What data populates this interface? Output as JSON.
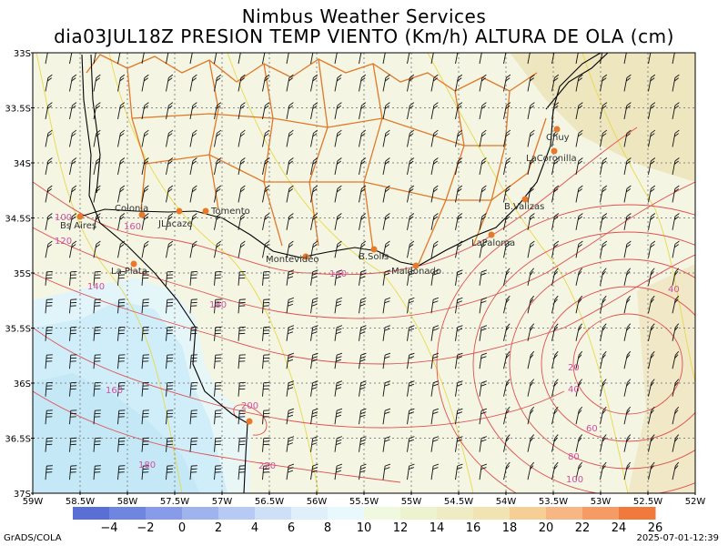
{
  "header": {
    "title": "Nimbus Weather Services",
    "subtitle": "dia03JUL18Z PRESION TEMP VIENTO (Km/h) ALTURA DE OLA (cm)"
  },
  "axes": {
    "lat_labels": [
      "33S",
      "33.5S",
      "34S",
      "34.5S",
      "35S",
      "35.5S",
      "36S",
      "36.5S",
      "37S"
    ],
    "lon_labels": [
      "59W",
      "58.5W",
      "58W",
      "57.5W",
      "57W",
      "56.5W",
      "56W",
      "55.5W",
      "55W",
      "54.5W",
      "54W",
      "53.5W",
      "53W",
      "52.5W",
      "52W"
    ]
  },
  "cities": [
    {
      "name": "Chuy"
    },
    {
      "name": "LaCoronilla"
    },
    {
      "name": "B.Valizas"
    },
    {
      "name": "LaPaloma"
    },
    {
      "name": "B.Solis"
    },
    {
      "name": "Maldonado"
    },
    {
      "name": "Montevideo"
    },
    {
      "name": "Colonia"
    },
    {
      "name": "JLacaze"
    },
    {
      "name": "Tomento"
    },
    {
      "name": "Bs Aires"
    },
    {
      "name": "La Plata"
    }
  ],
  "contour_labels": [
    "100",
    "120",
    "140",
    "160",
    "180",
    "200",
    "220",
    "140",
    "160",
    "180",
    "40",
    "20",
    "40",
    "60",
    "80",
    "100"
  ],
  "colorbar": {
    "values": [
      "−4",
      "−2",
      "0",
      "2",
      "4",
      "6",
      "8",
      "10",
      "12",
      "14",
      "16",
      "18",
      "20",
      "22",
      "24",
      "26"
    ],
    "colors": [
      "#5a6fd6",
      "#6f85e0",
      "#879be8",
      "#9fb3ee",
      "#b6caf3",
      "#cde0f7",
      "#dff0fb",
      "#e8f8fc",
      "#f1f8e0",
      "#eef3cf",
      "#efecc4",
      "#f2e3b2",
      "#f5cf95",
      "#f7b784",
      "#f59b63",
      "#ef7a3c"
    ]
  },
  "footer": {
    "left": "GrADS/COLA",
    "right": "2025-07-01-12:39"
  },
  "style": {
    "contour_red": "#e05050",
    "contour_yellow": "#e8d84a",
    "border_orange": "#e07828",
    "city_dot": "#e8782a",
    "label_magenta": "#d050a0"
  }
}
